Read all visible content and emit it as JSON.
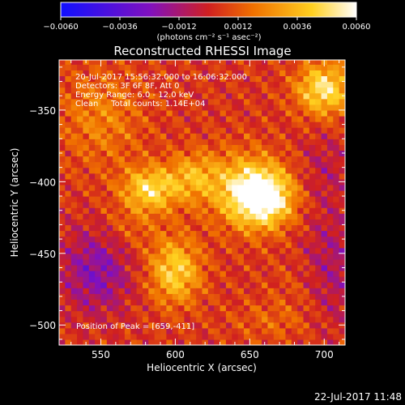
{
  "chart_data": {
    "type": "heatmap",
    "title": "Reconstructed RHESSI Image",
    "xlabel": "Heliocentric X (arcsec)",
    "ylabel": "Heliocentric Y (arcsec)",
    "xlim": [
      522,
      714
    ],
    "ylim": [
      -514,
      -315
    ],
    "x_ticks": [
      550,
      600,
      650,
      700
    ],
    "x_tick_labels": [
      "550",
      "600",
      "650",
      "700"
    ],
    "y_ticks": [
      -350,
      -400,
      -450,
      -500
    ],
    "y_tick_labels": [
      "−350",
      "−400",
      "−450",
      "−500"
    ],
    "colorbar": {
      "min": -0.006,
      "max": 0.006,
      "ticks": [
        -0.006,
        -0.0036,
        -0.0012,
        0.0012,
        0.0036,
        0.006
      ],
      "tick_labels": [
        "−0.0060",
        "−0.0036",
        "−0.0012",
        "0.0012",
        "0.0036",
        "0.0060"
      ],
      "unit_label": "(photons cm⁻² s⁻¹ asec⁻²)",
      "colors": [
        "#1010ff",
        "#8010c0",
        "#d02020",
        "#f07000",
        "#ffd020",
        "#ffffff"
      ]
    },
    "annotations": [
      "20-Jul-2017 15:56:32.000 to 16:06:32.000",
      "Detectors: 3F 6F 8F, Att 0",
      "Energy Range: 6.0 - 12.0 keV",
      "Clean     Total counts: 1.14E+04"
    ],
    "peak_label": "Position of Peak = [659,-411]",
    "peak": [
      659,
      -411
    ],
    "sources": [
      {
        "x": 659,
        "y": -411,
        "amp": 0.0058,
        "sx": 14,
        "sy": 14
      },
      {
        "x": 645,
        "y": -404,
        "amp": 0.003,
        "sx": 18,
        "sy": 18
      },
      {
        "x": 583,
        "y": -405,
        "amp": 0.0042,
        "sx": 13,
        "sy": 11
      },
      {
        "x": 612,
        "y": -396,
        "amp": 0.0026,
        "sx": 12,
        "sy": 12
      },
      {
        "x": 600,
        "y": -462,
        "amp": 0.004,
        "sx": 12,
        "sy": 16
      },
      {
        "x": 700,
        "y": -335,
        "amp": 0.0046,
        "sx": 13,
        "sy": 13
      },
      {
        "x": 550,
        "y": -355,
        "amp": 0.0018,
        "sx": 20,
        "sy": 24
      },
      {
        "x": 570,
        "y": -432,
        "amp": 0.001,
        "sx": 14,
        "sy": 12
      },
      {
        "x": 683,
        "y": -472,
        "amp": 0.0006,
        "sx": 14,
        "sy": 14
      },
      {
        "x": 547,
        "y": -462,
        "amp": -0.0026,
        "sx": 16,
        "sy": 20
      },
      {
        "x": 705,
        "y": -460,
        "amp": -0.0016,
        "sx": 14,
        "sy": 28
      },
      {
        "x": 665,
        "y": -497,
        "amp": 0.001,
        "sx": 20,
        "sy": 10
      },
      {
        "x": 700,
        "y": -390,
        "amp": -0.001,
        "sx": 12,
        "sy": 18
      }
    ]
  },
  "footer": {
    "timestamp": "22-Jul-2017 11:48"
  }
}
